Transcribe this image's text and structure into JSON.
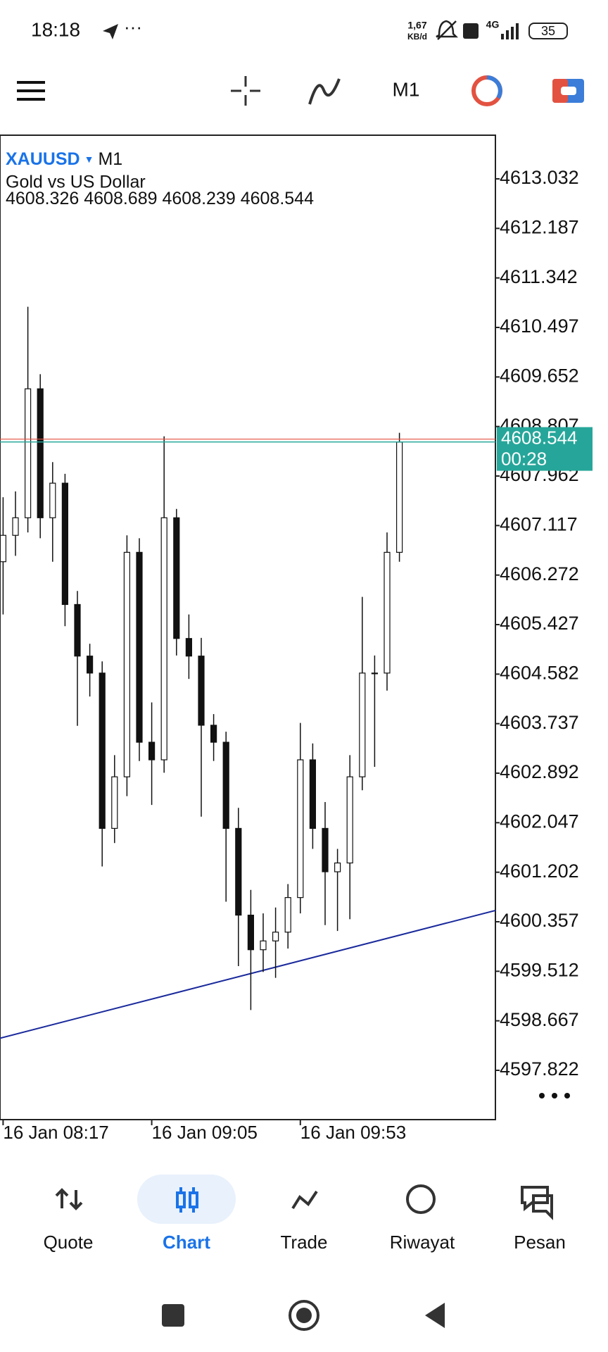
{
  "status_bar": {
    "time": "18:18",
    "speed": "1,67",
    "speed_unit": "KB/d",
    "network": "4G",
    "battery": "35"
  },
  "toolbar": {
    "timeframe": "M1"
  },
  "chart_data": {
    "type": "candlestick",
    "symbol": "XAUUSD",
    "timeframe": "M1",
    "description": "Gold vs US Dollar",
    "ohlc": [
      4608.326,
      4608.689,
      4608.239,
      4608.544
    ],
    "x": [
      0,
      4,
      8,
      12,
      16,
      20,
      24,
      28,
      32,
      36,
      40,
      44,
      48,
      52,
      56,
      60,
      64,
      68,
      72,
      76,
      80,
      84,
      88,
      92,
      96,
      100,
      104,
      108,
      112,
      116,
      120,
      124,
      128
    ],
    "opens": [
      4606.5,
      4606.95,
      4607.25,
      4609.45,
      4607.25,
      4607.84,
      4605.77,
      4604.89,
      4604.6,
      4601.95,
      4602.83,
      4606.66,
      4603.42,
      4603.12,
      4607.25,
      4605.19,
      4604.89,
      4603.71,
      4603.42,
      4601.95,
      4600.47,
      4599.88,
      4600.03,
      4600.18,
      4600.77,
      4603.12,
      4601.95,
      4601.21,
      4601.36,
      4602.83,
      4604.6,
      4604.6,
      4606.66
    ],
    "highs": [
      4607.6,
      4607.7,
      4610.85,
      4609.7,
      4608.2,
      4608.0,
      4606.0,
      4605.1,
      4604.8,
      4603.2,
      4606.95,
      4606.9,
      4604.1,
      4608.64,
      4607.4,
      4605.6,
      4605.2,
      4603.9,
      4603.6,
      4602.3,
      4600.9,
      4600.5,
      4600.6,
      4601.0,
      4603.75,
      4603.4,
      4602.4,
      4601.6,
      4603.2,
      4605.9,
      4604.9,
      4607.0,
      4608.7
    ],
    "lows": [
      4605.6,
      4606.6,
      4607.0,
      4606.9,
      4606.5,
      4605.4,
      4603.7,
      4604.2,
      4601.3,
      4601.7,
      4602.5,
      4603.1,
      4602.35,
      4602.9,
      4604.9,
      4604.5,
      4602.15,
      4603.1,
      4600.7,
      4599.6,
      4598.85,
      4599.5,
      4599.4,
      4599.9,
      4600.5,
      4601.6,
      4600.3,
      4600.2,
      4600.4,
      4602.6,
      4603.0,
      4604.3,
      4606.5
    ],
    "closes": [
      4606.95,
      4607.25,
      4609.45,
      4607.25,
      4607.84,
      4605.77,
      4604.89,
      4604.6,
      4601.95,
      4602.83,
      4606.66,
      4603.42,
      4603.12,
      4607.25,
      4605.19,
      4604.89,
      4603.71,
      4603.42,
      4601.95,
      4600.47,
      4599.88,
      4600.03,
      4600.18,
      4600.77,
      4603.12,
      4601.95,
      4601.21,
      4601.36,
      4602.83,
      4604.6,
      4604.6,
      4606.66,
      4608.54
    ],
    "xlim": [
      -1,
      159
    ],
    "xticks": [
      {
        "value": 0,
        "label": "16 Jan 08:17"
      },
      {
        "value": 48,
        "label": "16 Jan 09:05"
      },
      {
        "value": 96,
        "label": "16 Jan 09:53"
      }
    ],
    "ylim": [
      4596.981,
      4613.777
    ],
    "yticks": [
      4613.032,
      4612.187,
      4611.342,
      4610.497,
      4609.652,
      4608.807,
      4607.962,
      4607.117,
      4606.272,
      4605.427,
      4604.582,
      4603.737,
      4602.892,
      4602.047,
      4601.202,
      4600.357,
      4599.512,
      4598.667,
      4597.822
    ],
    "last_price": 4608.544,
    "countdown": "00:28",
    "last_price_color": "#26a69a",
    "trendline": {
      "x": [
        -1,
        159
      ],
      "y": [
        4598.37,
        4600.55
      ],
      "color": "#1a2a9c"
    }
  },
  "bottom_nav": [
    "Quote",
    "Chart",
    "Trade",
    "Riwayat",
    "Pesan"
  ]
}
